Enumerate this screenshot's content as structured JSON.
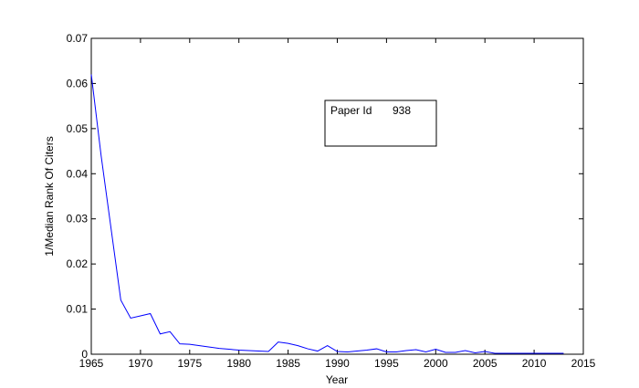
{
  "chart_data": {
    "type": "line",
    "title": "",
    "xlabel": "Year",
    "ylabel": "1/Median Rank Of Citers",
    "xlim": [
      1965,
      2015
    ],
    "ylim": [
      0,
      0.07
    ],
    "xticks": [
      1965,
      1970,
      1975,
      1980,
      1985,
      1990,
      1995,
      2000,
      2005,
      2010,
      2015
    ],
    "yticks": [
      0,
      0.01,
      0.02,
      0.03,
      0.04,
      0.05,
      0.06,
      0.07
    ],
    "ytick_labels": [
      "0",
      "0.01",
      "0.02",
      "0.03",
      "0.04",
      "0.05",
      "0.06",
      "0.07"
    ],
    "grid": false,
    "legend": {
      "placement": "top-center",
      "label": "Paper Id",
      "value": "938"
    },
    "series": [
      {
        "color": "#0000ff",
        "x": [
          1965,
          1966,
          1967,
          1968,
          1969,
          1970,
          1971,
          1972,
          1973,
          1974,
          1975,
          1976,
          1977,
          1978,
          1979,
          1980,
          1981,
          1982,
          1983,
          1984,
          1985,
          1986,
          1987,
          1988,
          1989,
          1990,
          1991,
          1992,
          1993,
          1994,
          1995,
          1996,
          1997,
          1998,
          1999,
          2000,
          2001,
          2002,
          2003,
          2004,
          2005,
          2006,
          2007,
          2008,
          2009,
          2010,
          2011,
          2012,
          2013
        ],
        "y": [
          0.062,
          0.044,
          0.028,
          0.012,
          0.008,
          0.0085,
          0.009,
          0.0045,
          0.005,
          0.0023,
          0.0022,
          0.0019,
          0.0016,
          0.0013,
          0.0011,
          0.0009,
          0.0008,
          0.0007,
          0.0006,
          0.0027,
          0.0024,
          0.0019,
          0.0012,
          0.0007,
          0.0019,
          0.0006,
          0.0005,
          0.0007,
          0.0009,
          0.0012,
          0.0005,
          0.0005,
          0.0008,
          0.001,
          0.0005,
          0.0011,
          0.0004,
          0.0004,
          0.0008,
          0.0003,
          0.0006,
          0.0002,
          0.0002,
          0.0002,
          0.0002,
          0.0002,
          0.0002,
          0.0002,
          0.0002
        ]
      }
    ]
  }
}
